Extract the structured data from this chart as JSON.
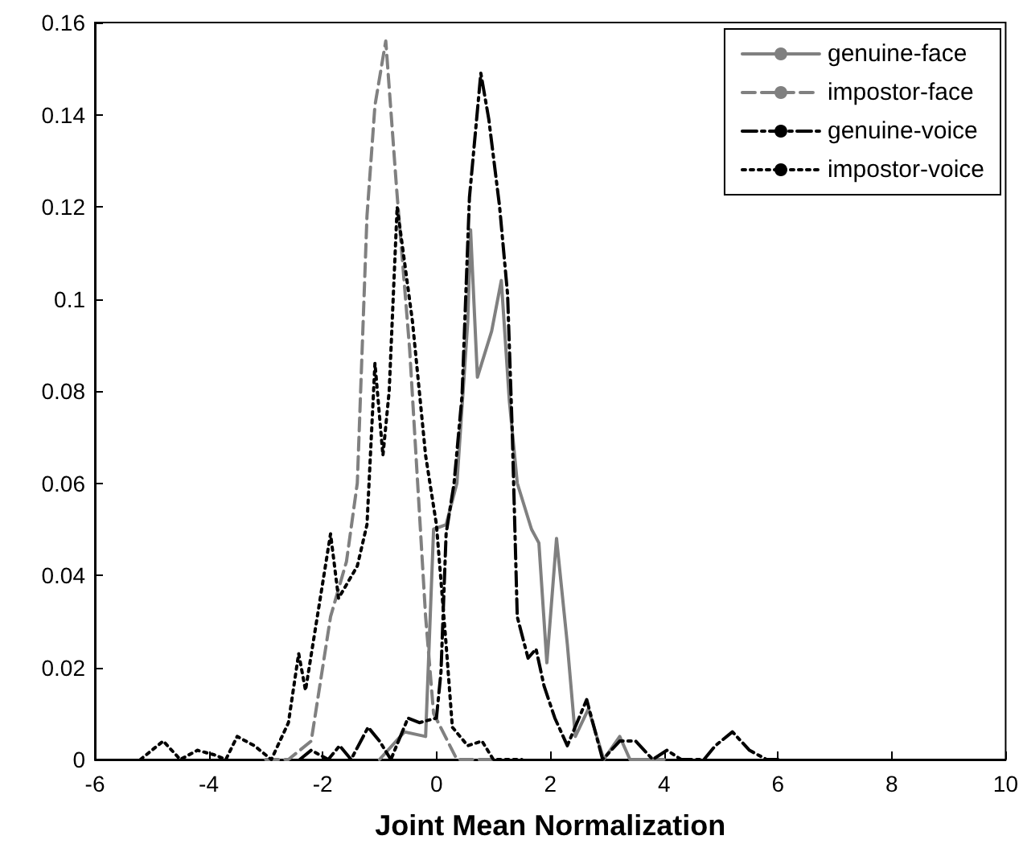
{
  "chart_data": {
    "type": "line",
    "xlabel": "Joint Mean Normalization",
    "xlim": [
      -6,
      10
    ],
    "xticks": [
      -6,
      -4,
      -2,
      0,
      2,
      4,
      6,
      8,
      10
    ],
    "ylim": [
      0,
      0.16
    ],
    "yticks": [
      0,
      0.02,
      0.04,
      0.06,
      0.08,
      0.1,
      0.12,
      0.14,
      0.16
    ],
    "grid": false,
    "legend": "top right",
    "marker": "none",
    "series": [
      {
        "name": "genuine-face",
        "color": "#808080",
        "line_style": "solid",
        "x": [
          -1,
          -0.56,
          -0.19,
          -0.05,
          0.17,
          0.36,
          0.55,
          0.6,
          0.72,
          0.97,
          1.14,
          1.28,
          1.42,
          1.67,
          1.8,
          1.94,
          2.11,
          2.3,
          2.44,
          2.67,
          2.94,
          3.22,
          3.4,
          4
        ],
        "values": [
          0,
          0.006,
          0.005,
          0.05,
          0.051,
          0.06,
          0.095,
          0.115,
          0.083,
          0.093,
          0.104,
          0.078,
          0.06,
          0.05,
          0.047,
          0.021,
          0.048,
          0.025,
          0.005,
          0.011,
          0,
          0.005,
          0,
          0
        ]
      },
      {
        "name": "impostor-face",
        "color": "#808080",
        "line_style": "dashed",
        "x": [
          -3,
          -2.6,
          -2.2,
          -1.86,
          -1.58,
          -1.39,
          -1.22,
          -1.08,
          -0.89,
          -0.7,
          -0.47,
          -0.33,
          -0.19,
          -0.05,
          0.36,
          1
        ],
        "values": [
          0,
          0,
          0.004,
          0.031,
          0.043,
          0.06,
          0.118,
          0.142,
          0.156,
          0.124,
          0.089,
          0.06,
          0.031,
          0.01,
          0,
          0
        ]
      },
      {
        "name": "genuine-voice",
        "color": "#000000",
        "line_style": "dashdot",
        "x": [
          -2.4,
          -2.2,
          -1.9,
          -1.7,
          -1.5,
          -1.2,
          -1,
          -0.8,
          -0.5,
          -0.3,
          0,
          0.08,
          0.17,
          0.31,
          0.45,
          0.58,
          0.78,
          0.92,
          1.11,
          1.25,
          1.33,
          1.42,
          1.61,
          1.75,
          1.89,
          2.08,
          2.3,
          2.64,
          2.92,
          3.22,
          3.5,
          3.8,
          4.05,
          4.3,
          4.7,
          4.9,
          5.2,
          5.5,
          5.8,
          6
        ],
        "values": [
          0,
          0.002,
          0,
          0.003,
          0,
          0.007,
          0.004,
          0,
          0.009,
          0.008,
          0.009,
          0.019,
          0.049,
          0.06,
          0.079,
          0.122,
          0.149,
          0.139,
          0.12,
          0.101,
          0.072,
          0.031,
          0.022,
          0.024,
          0.016,
          0.009,
          0.003,
          0.013,
          0,
          0.004,
          0.004,
          0,
          0.002,
          0,
          0,
          0.003,
          0.006,
          0.002,
          0,
          0
        ]
      },
      {
        "name": "impostor-voice",
        "color": "#000000",
        "line_style": "dotted",
        "x": [
          -5.2,
          -5,
          -4.8,
          -4.5,
          -4.2,
          -3.9,
          -3.7,
          -3.5,
          -3.2,
          -2.9,
          -2.6,
          -2.42,
          -2.3,
          -1.86,
          -1.72,
          -1.39,
          -1.22,
          -1.08,
          -0.94,
          -0.83,
          -0.69,
          -0.42,
          -0.19,
          0,
          0.17,
          0.28,
          0.55,
          0.8,
          1,
          1.5
        ],
        "values": [
          0,
          0.002,
          0.004,
          0,
          0.002,
          0.001,
          0,
          0.005,
          0.003,
          0,
          0.008,
          0.023,
          0.015,
          0.049,
          0.035,
          0.042,
          0.051,
          0.086,
          0.066,
          0.08,
          0.12,
          0.095,
          0.066,
          0.051,
          0.025,
          0.007,
          0.003,
          0.004,
          0,
          0
        ]
      }
    ]
  }
}
